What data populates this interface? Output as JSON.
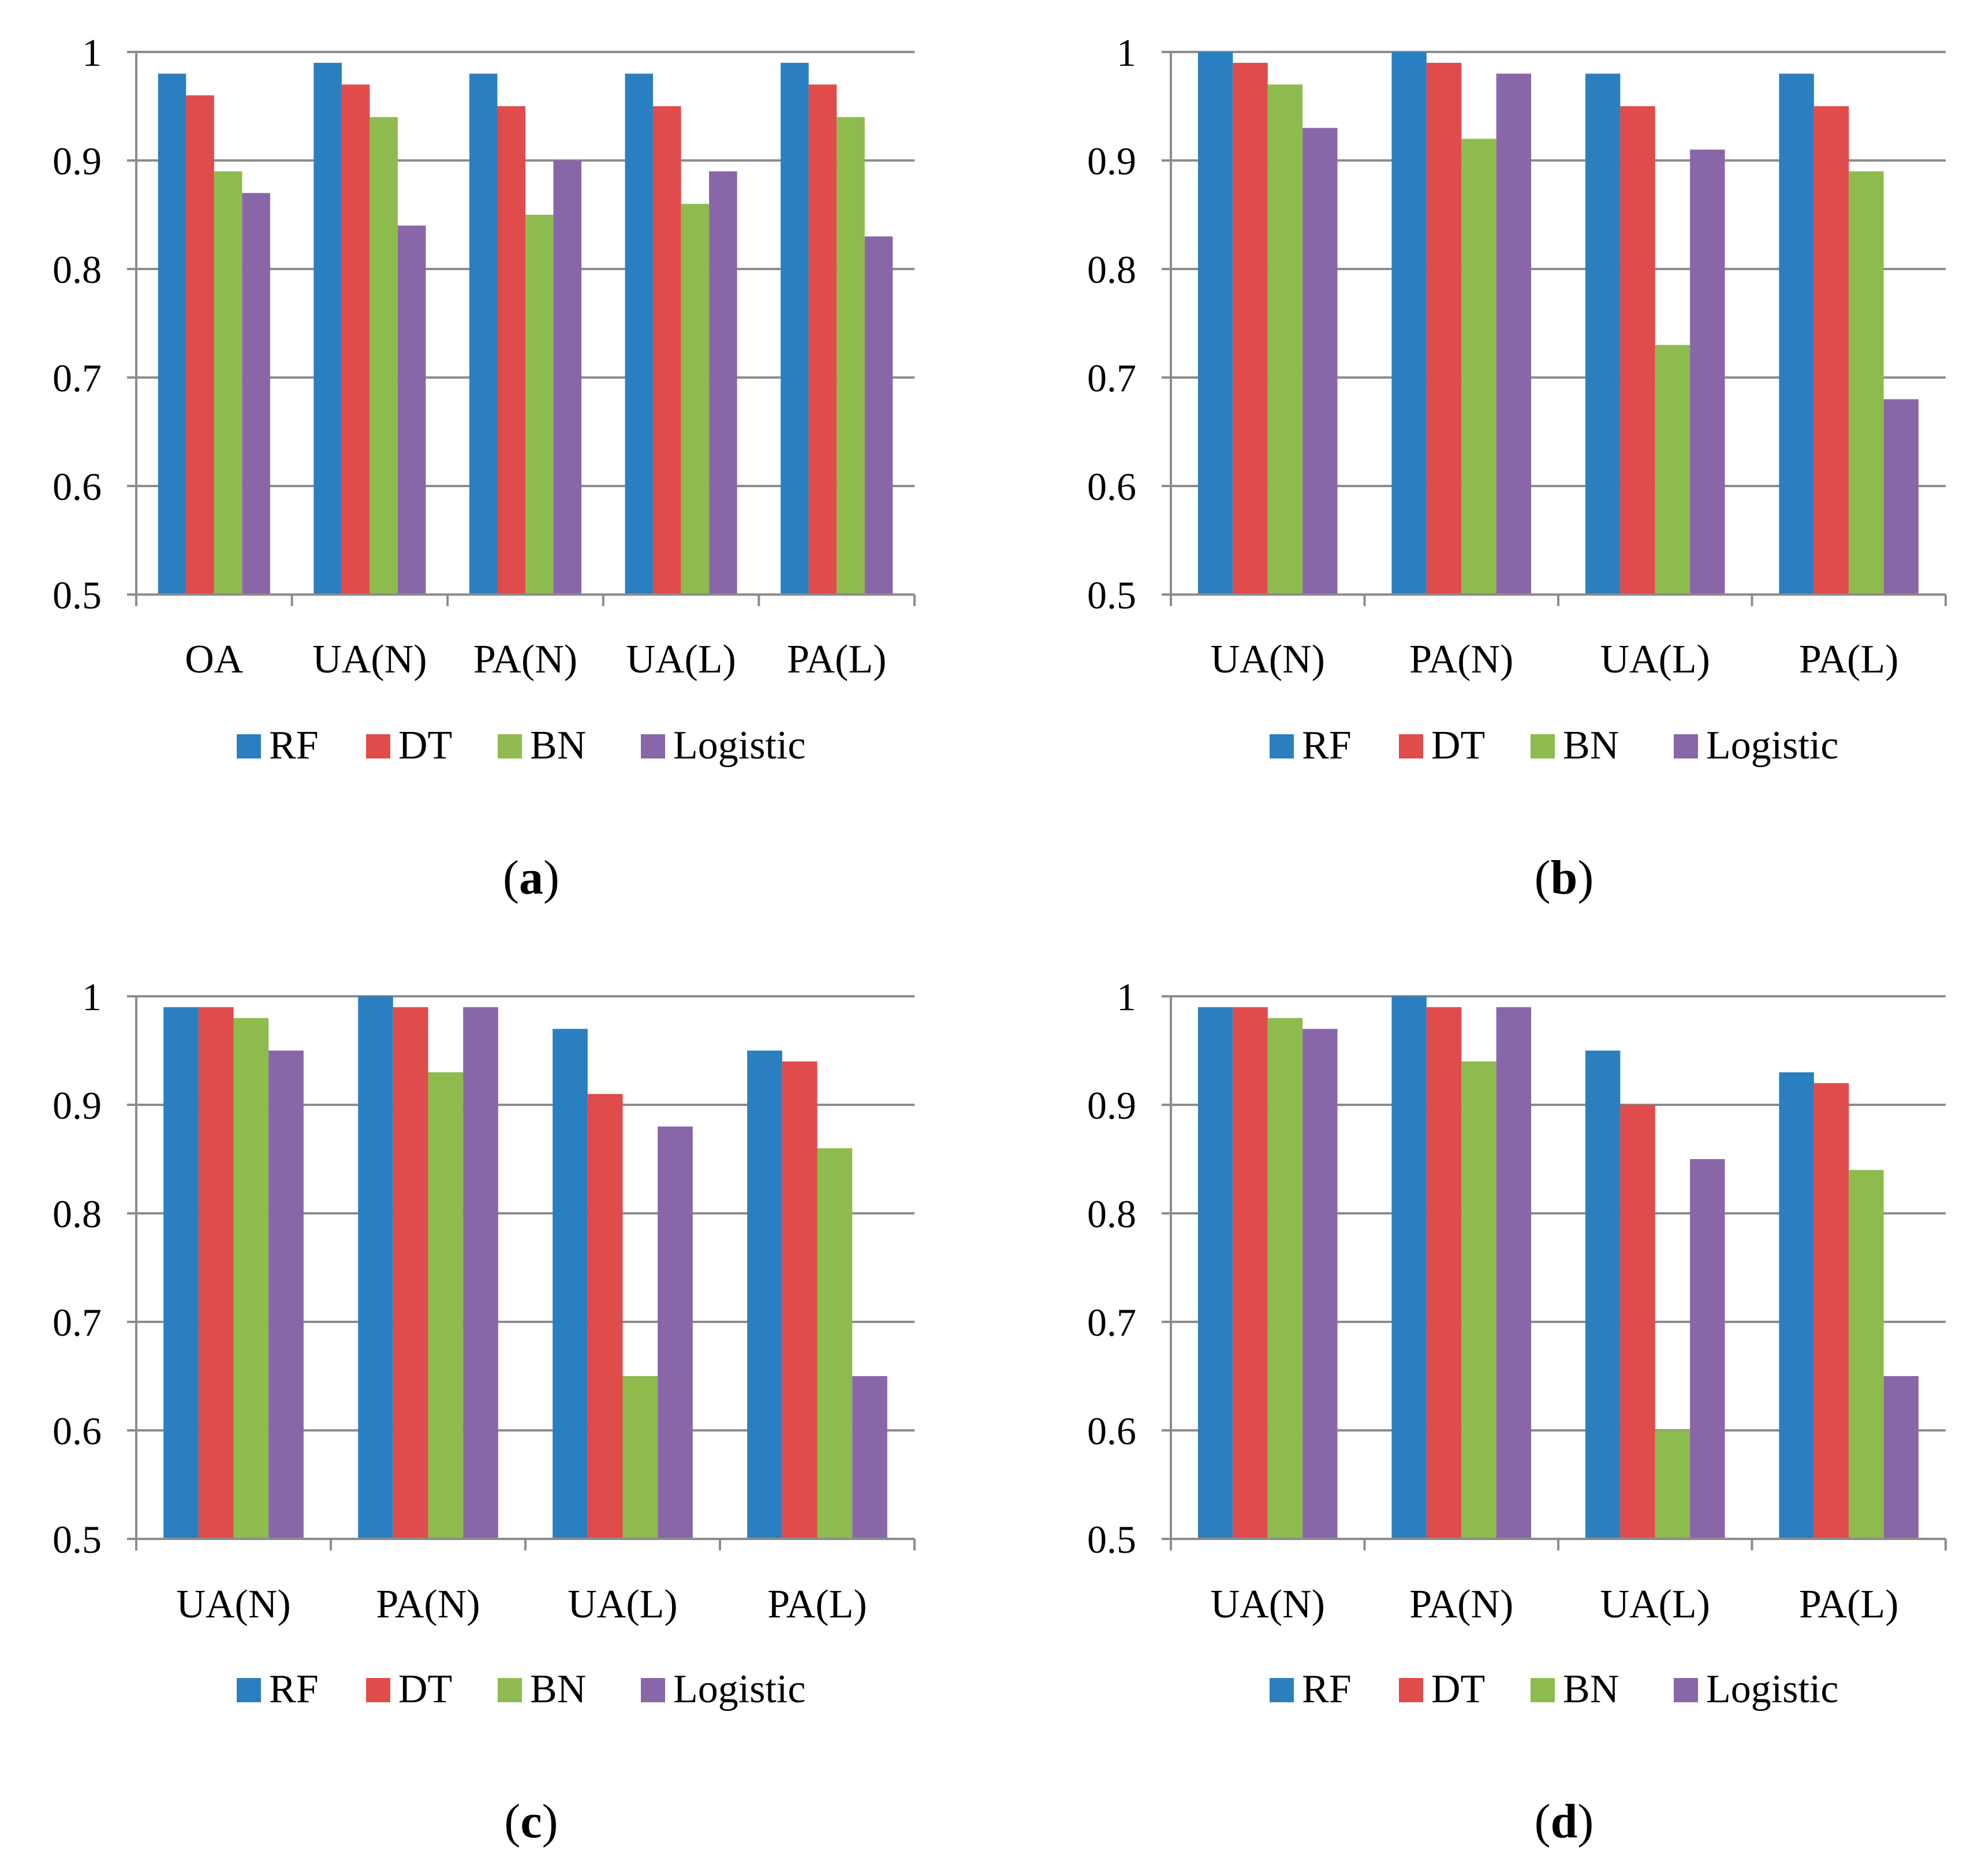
{
  "colors": {
    "RF": "#2a7fc0",
    "DT": "#e04b4b",
    "BN": "#8ebb4e",
    "Logistic": "#8966a8",
    "grid": "#8c8c8c",
    "axis": "#8c8c8c"
  },
  "chart_data": [
    {
      "type": "bar",
      "caption": "a",
      "categories": [
        "OA",
        "UA(N)",
        "PA(N)",
        "UA(L)",
        "PA(L)"
      ],
      "series": [
        {
          "name": "RF",
          "values": [
            0.98,
            0.99,
            0.98,
            0.98,
            0.99
          ]
        },
        {
          "name": "DT",
          "values": [
            0.96,
            0.97,
            0.95,
            0.95,
            0.97
          ]
        },
        {
          "name": "BN",
          "values": [
            0.89,
            0.94,
            0.85,
            0.86,
            0.94
          ]
        },
        {
          "name": "Logistic",
          "values": [
            0.87,
            0.84,
            0.9,
            0.89,
            0.83
          ]
        }
      ],
      "ylim": [
        0.5,
        1
      ],
      "yticks": [
        "0.5",
        "0.6",
        "0.7",
        "0.8",
        "0.9",
        "1"
      ],
      "grid": true,
      "legend": "bottom"
    },
    {
      "type": "bar",
      "caption": "b",
      "categories": [
        "UA(N)",
        "PA(N)",
        "UA(L)",
        "PA(L)"
      ],
      "series": [
        {
          "name": "RF",
          "values": [
            1.0,
            1.0,
            0.98,
            0.98
          ]
        },
        {
          "name": "DT",
          "values": [
            0.99,
            0.99,
            0.95,
            0.95
          ]
        },
        {
          "name": "BN",
          "values": [
            0.97,
            0.92,
            0.73,
            0.89
          ]
        },
        {
          "name": "Logistic",
          "values": [
            0.93,
            0.98,
            0.91,
            0.68
          ]
        }
      ],
      "ylim": [
        0.5,
        1
      ],
      "yticks": [
        "0.5",
        "0.6",
        "0.7",
        "0.8",
        "0.9",
        "1"
      ],
      "grid": true,
      "legend": "bottom"
    },
    {
      "type": "bar",
      "caption": "c",
      "categories": [
        "UA(N)",
        "PA(N)",
        "UA(L)",
        "PA(L)"
      ],
      "series": [
        {
          "name": "RF",
          "values": [
            0.99,
            1.0,
            0.97,
            0.95
          ]
        },
        {
          "name": "DT",
          "values": [
            0.99,
            0.99,
            0.91,
            0.94
          ]
        },
        {
          "name": "BN",
          "values": [
            0.98,
            0.93,
            0.65,
            0.86
          ]
        },
        {
          "name": "Logistic",
          "values": [
            0.95,
            0.99,
            0.88,
            0.65
          ]
        }
      ],
      "ylim": [
        0.5,
        1
      ],
      "yticks": [
        "0.5",
        "0.6",
        "0.7",
        "0.8",
        "0.9",
        "1"
      ],
      "grid": true,
      "legend": "bottom"
    },
    {
      "type": "bar",
      "caption": "d",
      "categories": [
        "UA(N)",
        "PA(N)",
        "UA(L)",
        "PA(L)"
      ],
      "series": [
        {
          "name": "RF",
          "values": [
            0.99,
            1.0,
            0.95,
            0.93
          ]
        },
        {
          "name": "DT",
          "values": [
            0.99,
            0.99,
            0.9,
            0.92
          ]
        },
        {
          "name": "BN",
          "values": [
            0.98,
            0.94,
            0.6,
            0.84
          ]
        },
        {
          "name": "Logistic",
          "values": [
            0.97,
            0.99,
            0.85,
            0.65
          ]
        }
      ],
      "ylim": [
        0.5,
        1
      ],
      "yticks": [
        "0.5",
        "0.6",
        "0.7",
        "0.8",
        "0.9",
        "1"
      ],
      "grid": true,
      "legend": "bottom"
    }
  ]
}
